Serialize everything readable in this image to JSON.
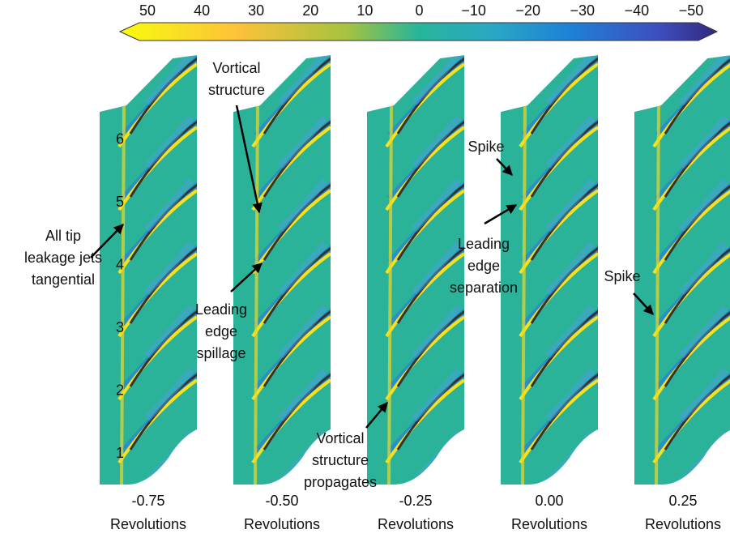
{
  "colorbar_ticks": [
    "50",
    "40",
    "30",
    "20",
    "10",
    "0",
    "−10",
    "−20",
    "−30",
    "−40",
    "−50"
  ],
  "panels": [
    {
      "time": "-0.75",
      "unit": "Revolutions"
    },
    {
      "time": "-0.50",
      "unit": "Revolutions"
    },
    {
      "time": "-0.25",
      "unit": "Revolutions"
    },
    {
      "time": "0.00",
      "unit": "Revolutions"
    },
    {
      "time": "0.25",
      "unit": "Revolutions"
    }
  ],
  "blade_numbers": [
    "1",
    "2",
    "3",
    "4",
    "5",
    "6"
  ],
  "annotations": [
    {
      "lines": [
        "All tip",
        "leakage jets",
        "tangential"
      ]
    },
    {
      "lines": [
        "Vortical",
        "structure"
      ]
    },
    {
      "lines": [
        "Leading",
        "edge",
        "spillage"
      ]
    },
    {
      "lines": [
        "Vortical",
        "structure",
        "propagates"
      ]
    },
    {
      "lines": [
        "Spike"
      ]
    },
    {
      "lines": [
        "Leading",
        "edge",
        "separation"
      ]
    },
    {
      "lines": [
        "Spike"
      ]
    }
  ]
}
